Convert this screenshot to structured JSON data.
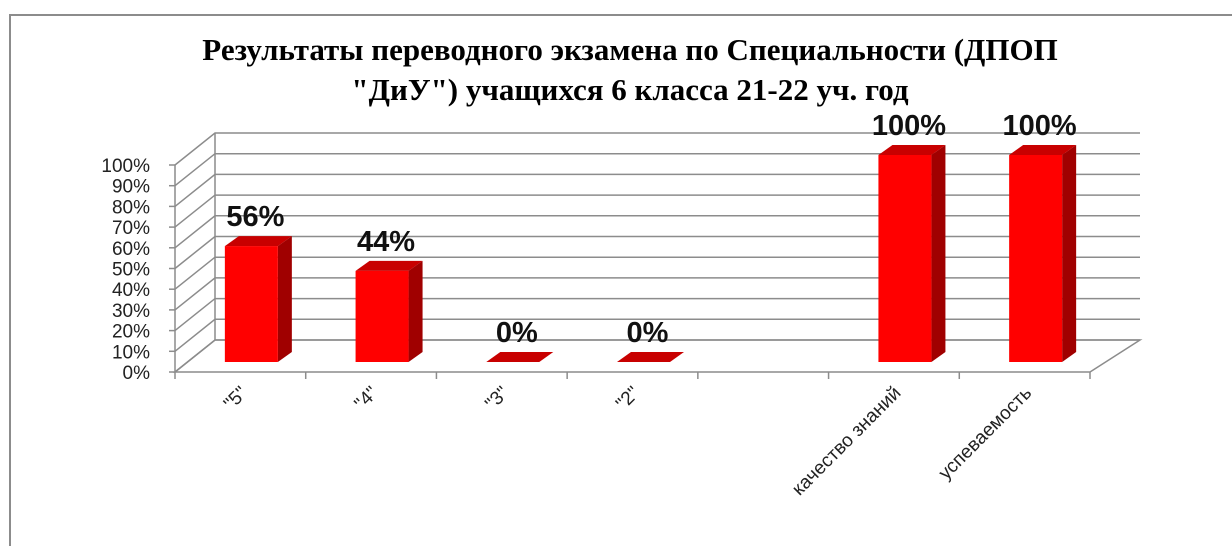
{
  "chart_data": {
    "type": "bar3d",
    "title": "Результаты  переводного экзамена по Специальности (ДПОП \"ДиУ\") учащихся 6 класса 21-22 уч. год",
    "categories": [
      "\"5\"",
      "\"4\"",
      "\"3\"",
      "\"2\"",
      null,
      "качество знаний",
      "успеваемость"
    ],
    "values": [
      56,
      44,
      0,
      0,
      null,
      100,
      100
    ],
    "value_labels": [
      "56%",
      "44%",
      "0%",
      "0%",
      null,
      "100%",
      "100%"
    ],
    "color": "#ff0000",
    "ylim": [
      0,
      100
    ],
    "yticks": [
      {
        "value": 0,
        "label": "0%"
      },
      {
        "value": 10,
        "label": "10%"
      },
      {
        "value": 20,
        "label": "20%"
      },
      {
        "value": 30,
        "label": "30%"
      },
      {
        "value": 40,
        "label": "40%"
      },
      {
        "value": 50,
        "label": "50%"
      },
      {
        "value": 60,
        "label": "60%"
      },
      {
        "value": 70,
        "label": "70%"
      },
      {
        "value": 80,
        "label": "80%"
      },
      {
        "value": 90,
        "label": "90%"
      },
      {
        "value": 100,
        "label": "100%"
      }
    ],
    "grid": true
  }
}
